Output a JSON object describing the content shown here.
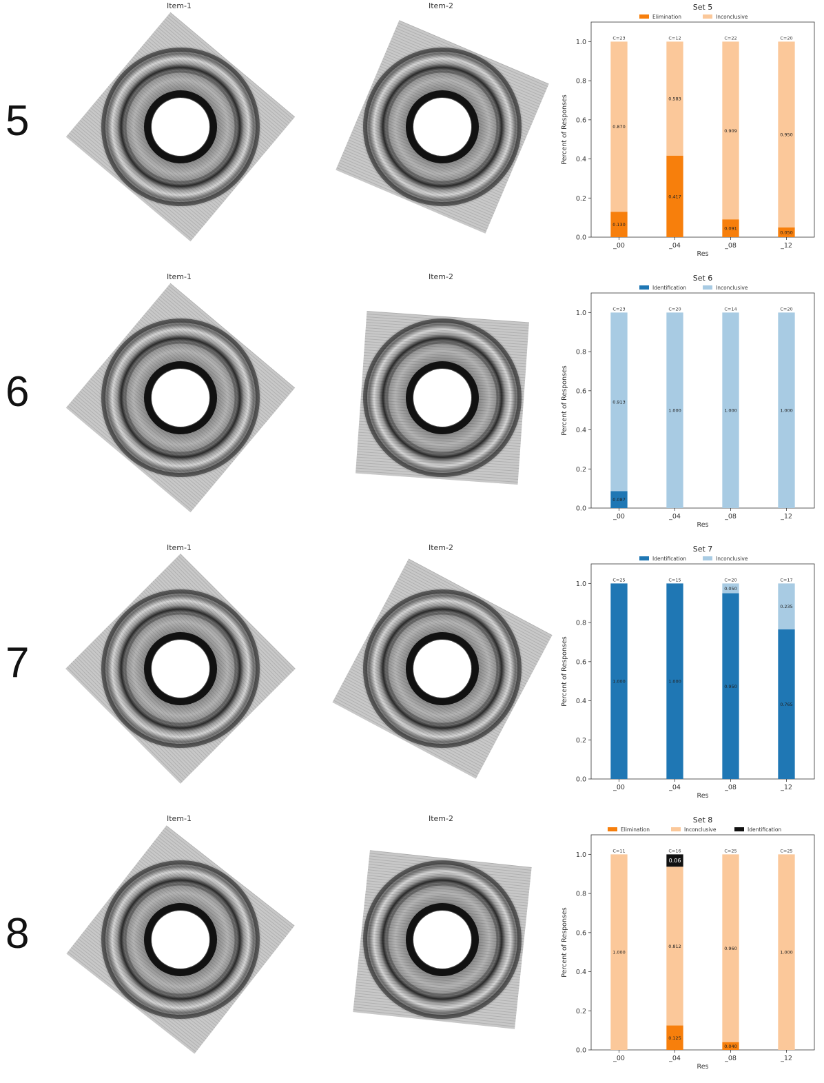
{
  "item_titles": {
    "item1": "Item-1",
    "item2": "Item-2"
  },
  "sets": [
    {
      "number": "5",
      "rot1": 40,
      "rot2": 23
    },
    {
      "number": "6",
      "rot1": 40,
      "rot2": 4
    },
    {
      "number": "7",
      "rot1": 45,
      "rot2": 28
    },
    {
      "number": "8",
      "rot1": 38,
      "rot2": 6
    }
  ],
  "colors": {
    "elimination": "#f77f0c",
    "elimination_inconclusive": "#fbc89a",
    "identification": "#1f77b4",
    "identification_inconclusive": "#a8cbe3",
    "identification_black": "#111111"
  },
  "chart_data": [
    {
      "type": "bar",
      "title": "Set 5",
      "xlabel": "Res",
      "ylabel": "Percent of Responses",
      "ylim": [
        0,
        1.1
      ],
      "yticks": [
        "0.0",
        "0.2",
        "0.4",
        "0.6",
        "0.8",
        "1.0"
      ],
      "categories": [
        "_00",
        "_04",
        "_08",
        "_12"
      ],
      "counts": [
        "C=23",
        "C=12",
        "C=22",
        "C=20"
      ],
      "legend_placement": "top-center",
      "series": [
        {
          "name": "Elimination",
          "color": "#f77f0c",
          "values": [
            0.13,
            0.417,
            0.091,
            0.05
          ],
          "labels": [
            "0.130",
            "0.417",
            "0.091",
            "0.050"
          ]
        },
        {
          "name": "Inconclusive",
          "color": "#fbc89a",
          "values": [
            0.87,
            0.583,
            0.909,
            0.95
          ],
          "labels": [
            "0.870",
            "0.583",
            "0.909",
            "0.950"
          ]
        }
      ]
    },
    {
      "type": "bar",
      "title": "Set 6",
      "xlabel": "Res",
      "ylabel": "Percent of Responses",
      "ylim": [
        0,
        1.1
      ],
      "yticks": [
        "0.0",
        "0.2",
        "0.4",
        "0.6",
        "0.8",
        "1.0"
      ],
      "categories": [
        "_00",
        "_04",
        "_08",
        "_12"
      ],
      "counts": [
        "C=23",
        "C=20",
        "C=14",
        "C=20"
      ],
      "legend_placement": "top-center",
      "series": [
        {
          "name": "Identification",
          "color": "#1f77b4",
          "values": [
            0.087,
            0,
            0,
            0
          ],
          "labels": [
            "0.087",
            "",
            "",
            ""
          ]
        },
        {
          "name": "Inconclusive",
          "color": "#a8cbe3",
          "values": [
            0.913,
            1.0,
            1.0,
            1.0
          ],
          "labels": [
            "0.913",
            "1.000",
            "1.000",
            "1.000"
          ]
        }
      ]
    },
    {
      "type": "bar",
      "title": "Set 7",
      "xlabel": "Res",
      "ylabel": "Percent of Responses",
      "ylim": [
        0,
        1.1
      ],
      "yticks": [
        "0.0",
        "0.2",
        "0.4",
        "0.6",
        "0.8",
        "1.0"
      ],
      "categories": [
        "_00",
        "_04",
        "_08",
        "_12"
      ],
      "counts": [
        "C=25",
        "C=15",
        "C=20",
        "C=17"
      ],
      "legend_placement": "top-center",
      "series": [
        {
          "name": "Identification",
          "color": "#1f77b4",
          "values": [
            1.0,
            1.0,
            0.95,
            0.765
          ],
          "labels": [
            "1.000",
            "1.000",
            "0.950",
            "0.765"
          ]
        },
        {
          "name": "Inconclusive",
          "color": "#a8cbe3",
          "values": [
            0,
            0,
            0.05,
            0.235
          ],
          "labels": [
            "",
            "",
            "0.050",
            "0.235"
          ]
        }
      ]
    },
    {
      "type": "bar",
      "title": "Set 8",
      "xlabel": "Res",
      "ylabel": "Percent of Responses",
      "ylim": [
        0,
        1.1
      ],
      "yticks": [
        "0.0",
        "0.2",
        "0.4",
        "0.6",
        "0.8",
        "1.0"
      ],
      "categories": [
        "_00",
        "_04",
        "_08",
        "_12"
      ],
      "counts": [
        "C=11",
        "C=16",
        "C=25",
        "C=25"
      ],
      "legend_placement": "top-center",
      "series": [
        {
          "name": "Elimination",
          "color": "#f77f0c",
          "values": [
            0,
            0.125,
            0.04,
            0
          ],
          "labels": [
            "",
            "0.125",
            "0.040",
            ""
          ]
        },
        {
          "name": "Inconclusive",
          "color": "#fbc89a",
          "values": [
            1.0,
            0.812,
            0.96,
            1.0
          ],
          "labels": [
            "1.000",
            "0.812",
            "0.960",
            "1.000"
          ]
        },
        {
          "name": "Identification",
          "color": "#111111",
          "values": [
            0,
            0.063,
            0,
            0
          ],
          "labels": [
            "",
            "0.06",
            "",
            ""
          ]
        }
      ]
    }
  ]
}
